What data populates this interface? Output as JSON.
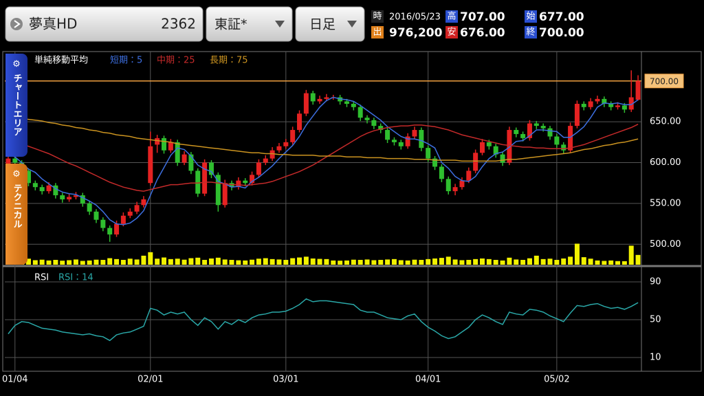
{
  "header": {
    "stock_name": "夢真HD",
    "stock_code": "2362",
    "market": "東証*",
    "period": "日足",
    "quote": {
      "time_label": "時",
      "date": "2016/05/23",
      "high_label": "高",
      "high": "707.00",
      "open_label": "始",
      "open": "677.00",
      "volume_label": "出",
      "volume": "976,200",
      "low_label": "安",
      "low": "676.00",
      "close_label": "終",
      "close": "700.00"
    }
  },
  "side_tabs": [
    "チャートエリア",
    "テクニカル"
  ],
  "chart_data": [
    {
      "type": "candlestick",
      "title": "単純移動平均",
      "grid": true,
      "categories": [
        null,
        "01/04",
        null,
        null,
        null,
        null,
        null,
        null,
        null,
        null,
        null,
        null,
        null,
        null,
        null,
        null,
        null,
        null,
        null,
        null,
        null,
        "02/01",
        null,
        null,
        null,
        null,
        null,
        null,
        null,
        null,
        null,
        null,
        null,
        null,
        null,
        null,
        null,
        null,
        null,
        null,
        null,
        "03/01",
        null,
        null,
        null,
        null,
        null,
        null,
        null,
        null,
        null,
        null,
        null,
        null,
        null,
        null,
        null,
        null,
        null,
        null,
        null,
        null,
        "04/01",
        null,
        null,
        null,
        null,
        null,
        null,
        null,
        null,
        null,
        null,
        null,
        null,
        null,
        null,
        null,
        null,
        null,
        null,
        "05/02",
        null,
        null,
        null,
        null,
        null,
        null,
        null,
        null,
        null,
        null,
        null,
        null
      ],
      "ohlc": [
        [
          598,
          615,
          595,
          605
        ],
        [
          605,
          608,
          596,
          600
        ],
        [
          600,
          603,
          586,
          590
        ],
        [
          590,
          593,
          571,
          575
        ],
        [
          575,
          578,
          566,
          570
        ],
        [
          570,
          573,
          561,
          565
        ],
        [
          565,
          576,
          562,
          572
        ],
        [
          572,
          575,
          556,
          560
        ],
        [
          560,
          563,
          551,
          555
        ],
        [
          555,
          562,
          552,
          558
        ],
        [
          558,
          564,
          555,
          560
        ],
        [
          560,
          563,
          546,
          550
        ],
        [
          550,
          553,
          536,
          540
        ],
        [
          540,
          543,
          526,
          530
        ],
        [
          530,
          533,
          516,
          520
        ],
        [
          520,
          523,
          503,
          512
        ],
        [
          512,
          529,
          509,
          525
        ],
        [
          525,
          539,
          522,
          535
        ],
        [
          535,
          544,
          532,
          540
        ],
        [
          540,
          552,
          537,
          548
        ],
        [
          548,
          559,
          545,
          555
        ],
        [
          575,
          638,
          572,
          620
        ],
        [
          622,
          634,
          612,
          630
        ],
        [
          630,
          633,
          611,
          615
        ],
        [
          615,
          629,
          612,
          625
        ],
        [
          625,
          628,
          596,
          600
        ],
        [
          600,
          614,
          597,
          610
        ],
        [
          610,
          613,
          586,
          590
        ],
        [
          590,
          593,
          558,
          562
        ],
        [
          562,
          604,
          559,
          600
        ],
        [
          600,
          603,
          581,
          585
        ],
        [
          585,
          588,
          540,
          548
        ],
        [
          548,
          579,
          545,
          575
        ],
        [
          575,
          578,
          566,
          570
        ],
        [
          570,
          582,
          567,
          578
        ],
        [
          578,
          581,
          571,
          575
        ],
        [
          575,
          589,
          572,
          585
        ],
        [
          585,
          604,
          582,
          600
        ],
        [
          600,
          609,
          597,
          605
        ],
        [
          605,
          619,
          602,
          615
        ],
        [
          615,
          624,
          612,
          620
        ],
        [
          620,
          629,
          617,
          625
        ],
        [
          625,
          644,
          622,
          640
        ],
        [
          640,
          664,
          637,
          660
        ],
        [
          660,
          689,
          657,
          685
        ],
        [
          685,
          688,
          671,
          675
        ],
        [
          675,
          682,
          672,
          678
        ],
        [
          678,
          684,
          675,
          680
        ],
        [
          680,
          683,
          677,
          680
        ],
        [
          680,
          683,
          671,
          675
        ],
        [
          675,
          678,
          668,
          672
        ],
        [
          672,
          675,
          664,
          668
        ],
        [
          668,
          671,
          651,
          655
        ],
        [
          655,
          658,
          648,
          652
        ],
        [
          652,
          655,
          641,
          645
        ],
        [
          645,
          648,
          636,
          640
        ],
        [
          640,
          643,
          624,
          628
        ],
        [
          628,
          631,
          621,
          625
        ],
        [
          625,
          628,
          616,
          620
        ],
        [
          620,
          636,
          617,
          632
        ],
        [
          632,
          644,
          629,
          640
        ],
        [
          640,
          643,
          614,
          618
        ],
        [
          618,
          621,
          601,
          605
        ],
        [
          605,
          608,
          591,
          595
        ],
        [
          595,
          598,
          576,
          580
        ],
        [
          580,
          583,
          561,
          565
        ],
        [
          565,
          574,
          560,
          570
        ],
        [
          570,
          582,
          567,
          578
        ],
        [
          578,
          594,
          575,
          590
        ],
        [
          590,
          616,
          587,
          612
        ],
        [
          612,
          629,
          609,
          625
        ],
        [
          625,
          628,
          616,
          620
        ],
        [
          620,
          623,
          606,
          610
        ],
        [
          610,
          613,
          596,
          600
        ],
        [
          600,
          644,
          597,
          640
        ],
        [
          640,
          643,
          631,
          635
        ],
        [
          635,
          638,
          626,
          630
        ],
        [
          630,
          652,
          627,
          648
        ],
        [
          648,
          651,
          641,
          645
        ],
        [
          645,
          648,
          638,
          642
        ],
        [
          642,
          645,
          628,
          632
        ],
        [
          632,
          635,
          618,
          622
        ],
        [
          622,
          625,
          611,
          615
        ],
        [
          615,
          649,
          612,
          645
        ],
        [
          645,
          676,
          642,
          672
        ],
        [
          672,
          675,
          664,
          668
        ],
        [
          668,
          679,
          665,
          675
        ],
        [
          675,
          682,
          672,
          678
        ],
        [
          678,
          681,
          668,
          672
        ],
        [
          672,
          675,
          664,
          668
        ],
        [
          668,
          674,
          665,
          670
        ],
        [
          670,
          673,
          661,
          665
        ],
        [
          665,
          713,
          662,
          680
        ],
        [
          677,
          707,
          676,
          700
        ]
      ],
      "up_color": "#e52222",
      "down_color": "#2fbf2f",
      "ylim": [
        475,
        736
      ],
      "yticks": [
        {
          "value": 650,
          "label": "650.00"
        },
        {
          "value": 600,
          "label": "600.00"
        },
        {
          "value": 550,
          "label": "550.00"
        },
        {
          "value": 500,
          "label": "500.00"
        }
      ],
      "current_price_line": {
        "value": 700,
        "label": "700.00",
        "color": "#f0a040"
      },
      "series": [
        {
          "name": "短期：5",
          "color": "#3d6fe0",
          "values": [
            610,
            607,
            600,
            592,
            588,
            580,
            574,
            568,
            564,
            562,
            561,
            557,
            553,
            548,
            540,
            530,
            525,
            524,
            526,
            532,
            541,
            560,
            579,
            594,
            609,
            618,
            616,
            608,
            597,
            592,
            589,
            577,
            574,
            570,
            571,
            569,
            577,
            582,
            589,
            596,
            605,
            613,
            621,
            632,
            646,
            657,
            668,
            676,
            680,
            678,
            677,
            675,
            670,
            664,
            658,
            652,
            644,
            638,
            632,
            629,
            629,
            627,
            623,
            618,
            600,
            593,
            583,
            578,
            577,
            583,
            595,
            605,
            611,
            613,
            619,
            626,
            627,
            633,
            640,
            640,
            639,
            638,
            631,
            631,
            637,
            644,
            655,
            668,
            673,
            672,
            673,
            671,
            671,
            677
          ]
        },
        {
          "name": "中期：25",
          "color": "#c42a2a",
          "values": [
            628,
            626,
            623,
            620,
            617,
            614,
            611,
            607,
            603,
            599,
            596,
            592,
            588,
            584,
            580,
            576,
            573,
            570,
            568,
            566,
            565,
            567,
            569,
            571,
            573,
            573,
            574,
            575,
            575,
            576,
            576,
            575,
            574,
            573,
            573,
            572,
            573,
            574,
            575,
            577,
            580,
            583,
            586,
            589,
            593,
            597,
            602,
            607,
            612,
            617,
            622,
            627,
            632,
            636,
            639,
            641,
            643,
            644,
            645,
            645,
            646,
            646,
            645,
            644,
            642,
            640,
            637,
            634,
            632,
            630,
            628,
            626,
            624,
            622,
            621,
            620,
            619,
            619,
            618,
            618,
            617,
            617,
            617,
            618,
            620,
            622,
            625,
            628,
            631,
            634,
            637,
            640,
            643,
            647
          ]
        },
        {
          "name": "長期：75",
          "color": "#cc9420",
          "values": [
            656,
            655,
            654,
            653,
            652,
            651,
            649,
            648,
            646,
            645,
            643,
            642,
            640,
            639,
            637,
            636,
            634,
            633,
            632,
            630,
            629,
            628,
            627,
            626,
            625,
            623,
            622,
            621,
            620,
            619,
            618,
            617,
            616,
            615,
            614,
            613,
            612,
            612,
            611,
            611,
            610,
            610,
            609,
            609,
            609,
            609,
            608,
            608,
            608,
            608,
            607,
            607,
            607,
            606,
            606,
            606,
            605,
            605,
            605,
            605,
            604,
            604,
            604,
            603,
            603,
            603,
            603,
            602,
            602,
            602,
            602,
            602,
            602,
            603,
            604,
            604,
            605,
            606,
            607,
            608,
            609,
            610,
            611,
            612,
            614,
            616,
            617,
            619,
            621,
            622,
            624,
            625,
            627,
            629
          ]
        }
      ],
      "volume": {
        "color": "#f2f200",
        "ylim": [
          0,
          2200000
        ],
        "values": [
          700000,
          520000,
          480000,
          600000,
          450000,
          500000,
          420000,
          480000,
          400000,
          450000,
          520000,
          380000,
          420000,
          500000,
          480000,
          650000,
          560000,
          480000,
          600000,
          520000,
          900000,
          1250000,
          600000,
          720000,
          560000,
          600000,
          500000,
          650000,
          700000,
          480000,
          620000,
          700000,
          520000,
          480000,
          440000,
          420000,
          500000,
          600000,
          650000,
          560000,
          520000,
          480000,
          650000,
          720000,
          800000,
          620000,
          580000,
          560000,
          420000,
          400000,
          420000,
          500000,
          480000,
          520000,
          450000,
          480000,
          520000,
          560000,
          450000,
          420000,
          500000,
          480000,
          560000,
          620000,
          680000,
          800000,
          520000,
          450000,
          480000,
          560000,
          620000,
          560000,
          480000,
          420000,
          700000,
          520000,
          480000,
          640000,
          900000,
          560000,
          600000,
          480000,
          620000,
          800000,
          2100000,
          750000,
          600000,
          420000,
          380000,
          420000,
          360000,
          350000,
          1900000,
          976200
        ]
      }
    },
    {
      "type": "line",
      "title": "RSI",
      "ylim": [
        -4.5,
        104.5
      ],
      "yticks": [
        90,
        50,
        10
      ],
      "grid": true,
      "series": [
        {
          "name": "RSI：14",
          "color": "#2aa8a8",
          "values": [
            35,
            44,
            48,
            47,
            44,
            41,
            40,
            39,
            37,
            36,
            35,
            34,
            35,
            33,
            32,
            28,
            34,
            36,
            37,
            40,
            43,
            62,
            60,
            55,
            58,
            56,
            58,
            50,
            44,
            52,
            48,
            40,
            48,
            45,
            50,
            47,
            52,
            55,
            56,
            58,
            58,
            59,
            62,
            66,
            72,
            69,
            70,
            70,
            69,
            68,
            67,
            66,
            60,
            58,
            58,
            55,
            52,
            51,
            50,
            54,
            56,
            48,
            42,
            38,
            33,
            30,
            32,
            37,
            42,
            50,
            55,
            52,
            48,
            45,
            58,
            56,
            55,
            61,
            60,
            58,
            54,
            51,
            48,
            57,
            65,
            64,
            66,
            67,
            64,
            62,
            63,
            61,
            64,
            68
          ]
        }
      ]
    }
  ]
}
